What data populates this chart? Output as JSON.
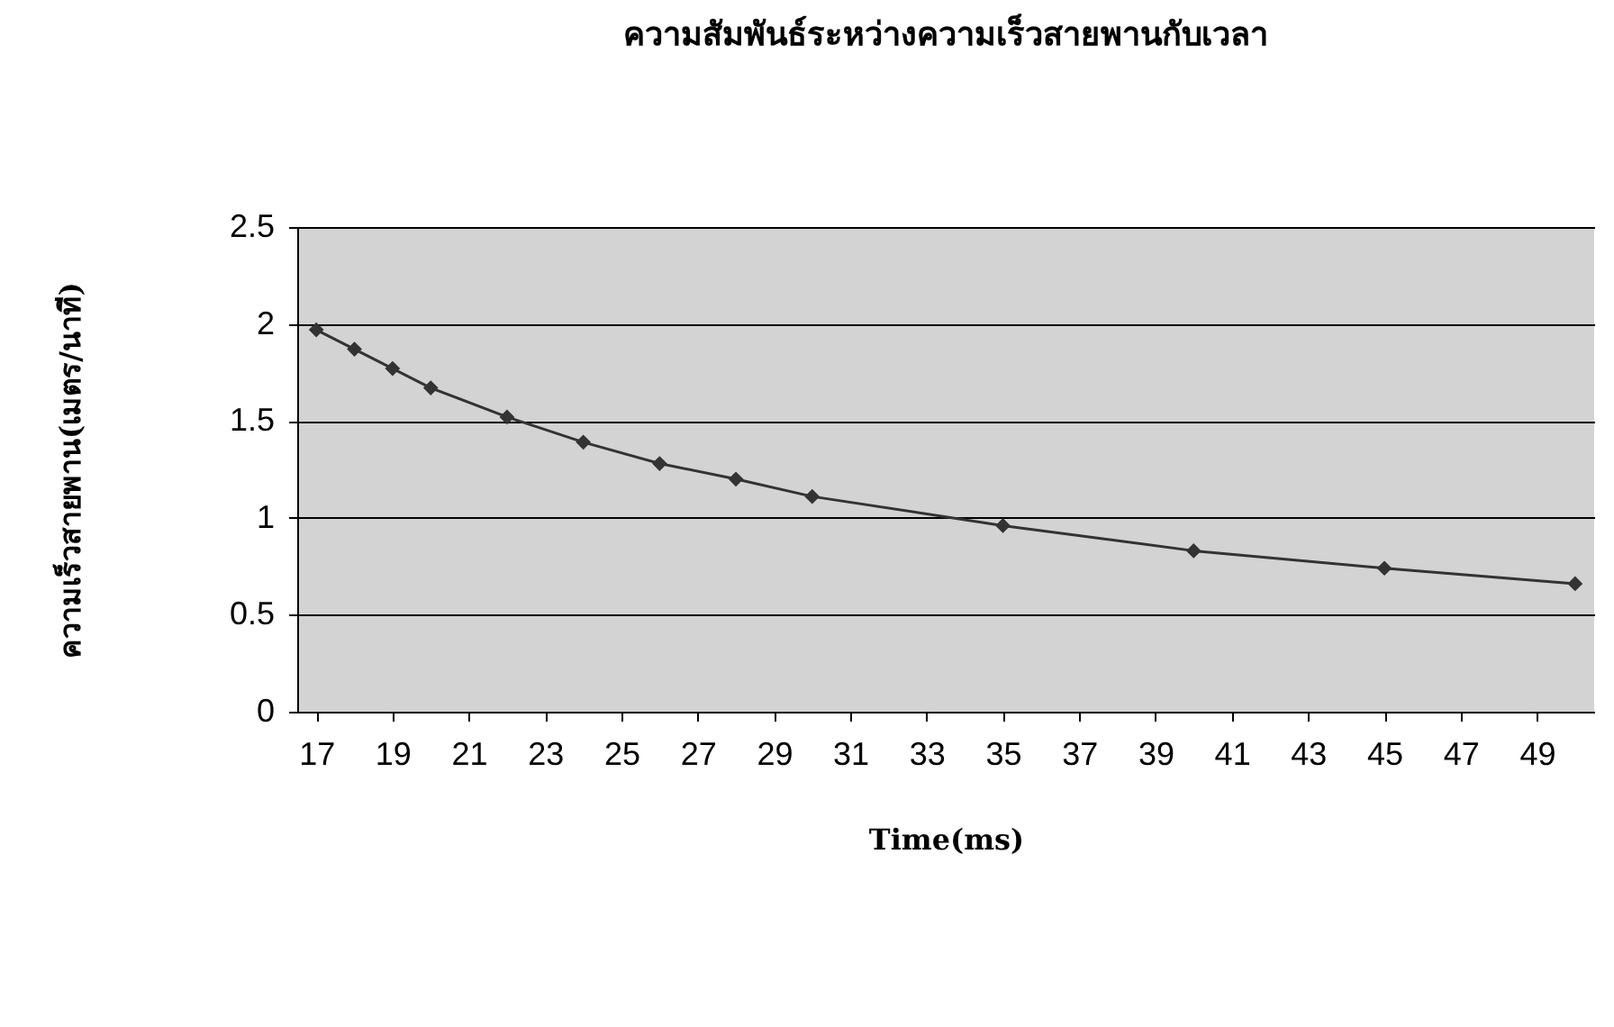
{
  "chart_data": {
    "type": "line",
    "title": "ความสัมพันธ์ระหว่างความเร็วสายพานกับเวลา",
    "xlabel": "Time(ms)",
    "ylabel": "ความเร็วสายพาน(เมตร/นาที)",
    "x": [
      17,
      18,
      19,
      20,
      22,
      24,
      26,
      28,
      30,
      35,
      40,
      45,
      50
    ],
    "series": [
      {
        "color": "#333333",
        "values": [
          1.97,
          1.87,
          1.77,
          1.67,
          1.52,
          1.39,
          1.28,
          1.2,
          1.11,
          0.96,
          0.83,
          0.74,
          0.66
        ]
      }
    ],
    "xlim": [
      16.5,
      50.5
    ],
    "xticks": [
      17,
      19,
      21,
      23,
      25,
      27,
      29,
      31,
      33,
      35,
      37,
      39,
      41,
      43,
      45,
      47,
      49
    ],
    "ylim": [
      0,
      2.5
    ],
    "yticks": [
      0,
      0.5,
      1,
      1.5,
      2,
      2.5
    ],
    "grid": "y",
    "marker": "diamond",
    "line_style": "solid"
  }
}
